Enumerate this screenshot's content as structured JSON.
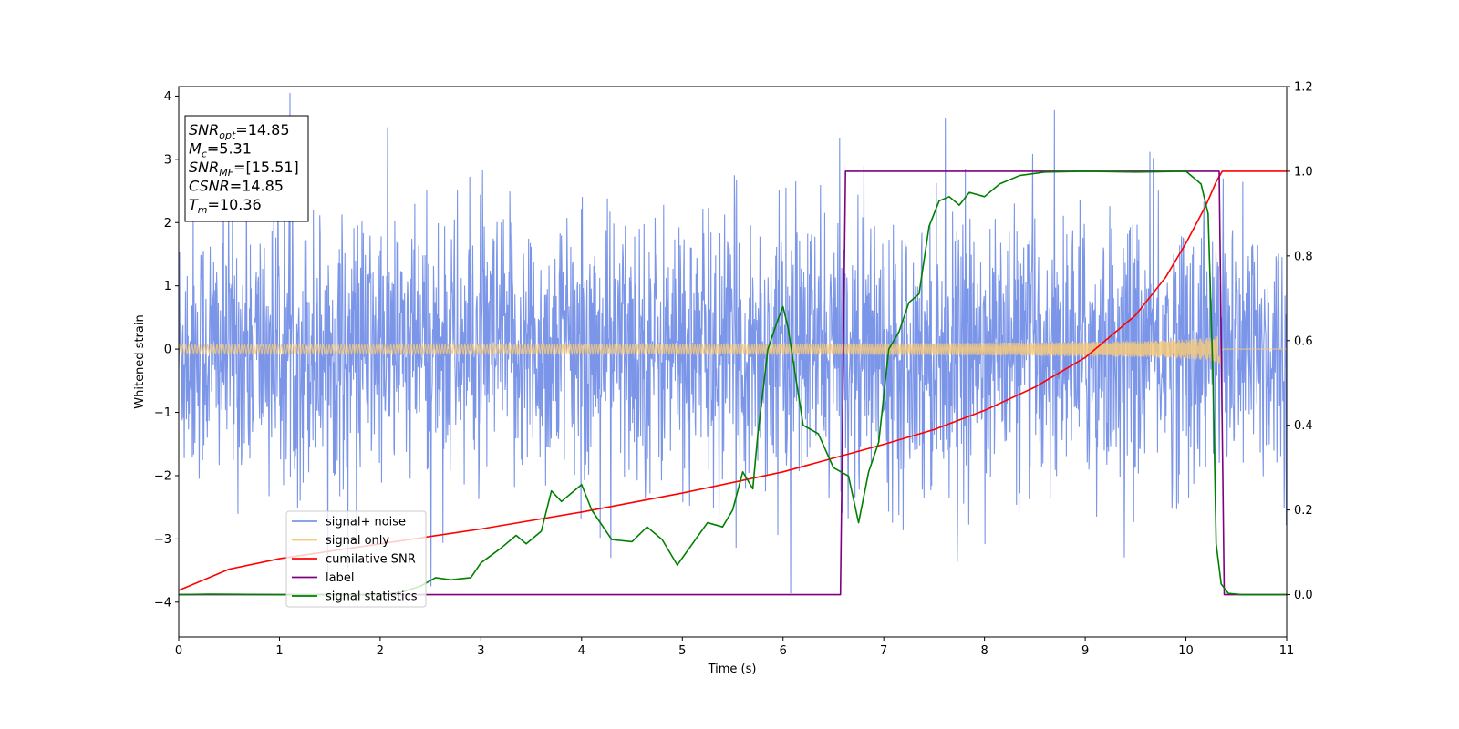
{
  "chart_data": {
    "type": "line",
    "xlabel": "Time (s)",
    "ylabel": "Whitened strain",
    "xlim": [
      0,
      11
    ],
    "ylim_left": [
      -4.55,
      4.15
    ],
    "ylim_right": [
      -0.1,
      1.2
    ],
    "x_ticks": [
      0,
      1,
      2,
      3,
      4,
      5,
      6,
      7,
      8,
      9,
      10,
      11
    ],
    "y_ticks_left": [
      -4,
      -3,
      -2,
      -1,
      0,
      1,
      2,
      3,
      4
    ],
    "y_ticks_left_labels": [
      "−4",
      "−3",
      "−2",
      "−1",
      "0",
      "1",
      "2",
      "3",
      "4"
    ],
    "y_ticks_right": [
      0.0,
      0.2,
      0.4,
      0.6,
      0.8,
      1.0,
      1.2
    ],
    "y_ticks_right_labels": [
      "0.0",
      "0.2",
      "0.4",
      "0.6",
      "0.8",
      "1.0",
      "1.2"
    ],
    "legend_location": "lower-left",
    "grid": false,
    "annotation": [
      {
        "var": "SNR",
        "sub": "opt",
        "value": "=14.85"
      },
      {
        "var": "M",
        "sub": "c",
        "value": "=5.31"
      },
      {
        "var": "SNR",
        "sub": "MF",
        "value": "=[15.51]"
      },
      {
        "var": "CSNR",
        "sub": "",
        "value": "=14.85"
      },
      {
        "var": "T",
        "sub": "m",
        "value": "=10.36"
      }
    ],
    "series": [
      {
        "name": "signal+ noise",
        "axis": "left",
        "color": "#7b95e8",
        "kind": "noise",
        "noise_sigma": 1.0,
        "x_range": [
          0,
          11
        ]
      },
      {
        "name": "signal only",
        "axis": "left",
        "color": "#f5c97d",
        "kind": "chirp",
        "amplitude_start": 0.07,
        "amplitude_end": 0.85,
        "t_merger": 10.36
      },
      {
        "name": "cumilative SNR",
        "axis": "right",
        "color": "#ff0000",
        "points": [
          [
            0.0,
            0.01
          ],
          [
            0.5,
            0.06
          ],
          [
            1.0,
            0.085
          ],
          [
            2.0,
            0.12
          ],
          [
            3.0,
            0.155
          ],
          [
            4.0,
            0.195
          ],
          [
            5.0,
            0.24
          ],
          [
            6.0,
            0.29
          ],
          [
            7.0,
            0.355
          ],
          [
            7.5,
            0.39
          ],
          [
            8.0,
            0.435
          ],
          [
            8.5,
            0.49
          ],
          [
            9.0,
            0.56
          ],
          [
            9.5,
            0.66
          ],
          [
            9.8,
            0.75
          ],
          [
            10.0,
            0.83
          ],
          [
            10.2,
            0.92
          ],
          [
            10.3,
            0.975
          ],
          [
            10.36,
            1.0
          ],
          [
            11.0,
            1.0
          ]
        ]
      },
      {
        "name": "label",
        "axis": "right",
        "color": "#800080",
        "points": [
          [
            0.0,
            0.0
          ],
          [
            6.57,
            0.0
          ],
          [
            6.62,
            1.0
          ],
          [
            10.33,
            1.0
          ],
          [
            10.38,
            0.0
          ],
          [
            11.0,
            0.0
          ]
        ]
      },
      {
        "name": "signal statistics",
        "axis": "right",
        "color": "#008000",
        "points": [
          [
            0.0,
            0.0
          ],
          [
            0.3,
            0.001
          ],
          [
            1.0,
            0.0
          ],
          [
            1.5,
            0.0
          ],
          [
            2.0,
            0.0
          ],
          [
            2.2,
            0.005
          ],
          [
            2.4,
            0.02
          ],
          [
            2.55,
            0.04
          ],
          [
            2.7,
            0.035
          ],
          [
            2.9,
            0.04
          ],
          [
            3.0,
            0.075
          ],
          [
            3.2,
            0.11
          ],
          [
            3.35,
            0.14
          ],
          [
            3.45,
            0.12
          ],
          [
            3.6,
            0.15
          ],
          [
            3.7,
            0.245
          ],
          [
            3.8,
            0.22
          ],
          [
            3.9,
            0.24
          ],
          [
            4.0,
            0.26
          ],
          [
            4.1,
            0.2
          ],
          [
            4.3,
            0.13
          ],
          [
            4.5,
            0.125
          ],
          [
            4.65,
            0.16
          ],
          [
            4.8,
            0.13
          ],
          [
            4.95,
            0.07
          ],
          [
            5.1,
            0.12
          ],
          [
            5.25,
            0.17
          ],
          [
            5.4,
            0.16
          ],
          [
            5.5,
            0.2
          ],
          [
            5.6,
            0.29
          ],
          [
            5.7,
            0.25
          ],
          [
            5.75,
            0.38
          ],
          [
            5.85,
            0.58
          ],
          [
            5.95,
            0.65
          ],
          [
            6.0,
            0.68
          ],
          [
            6.05,
            0.63
          ],
          [
            6.2,
            0.4
          ],
          [
            6.35,
            0.38
          ],
          [
            6.5,
            0.3
          ],
          [
            6.65,
            0.28
          ],
          [
            6.75,
            0.17
          ],
          [
            6.85,
            0.29
          ],
          [
            6.95,
            0.36
          ],
          [
            7.05,
            0.58
          ],
          [
            7.15,
            0.62
          ],
          [
            7.25,
            0.69
          ],
          [
            7.35,
            0.71
          ],
          [
            7.45,
            0.87
          ],
          [
            7.55,
            0.93
          ],
          [
            7.65,
            0.94
          ],
          [
            7.75,
            0.92
          ],
          [
            7.85,
            0.95
          ],
          [
            8.0,
            0.94
          ],
          [
            8.15,
            0.97
          ],
          [
            8.35,
            0.99
          ],
          [
            8.6,
            0.998
          ],
          [
            9.0,
            1.0
          ],
          [
            9.5,
            0.998
          ],
          [
            10.0,
            1.0
          ],
          [
            10.15,
            0.97
          ],
          [
            10.22,
            0.9
          ],
          [
            10.27,
            0.5
          ],
          [
            10.3,
            0.12
          ],
          [
            10.35,
            0.025
          ],
          [
            10.42,
            0.003
          ],
          [
            10.55,
            0.0
          ],
          [
            11.0,
            0.0
          ]
        ]
      }
    ]
  }
}
